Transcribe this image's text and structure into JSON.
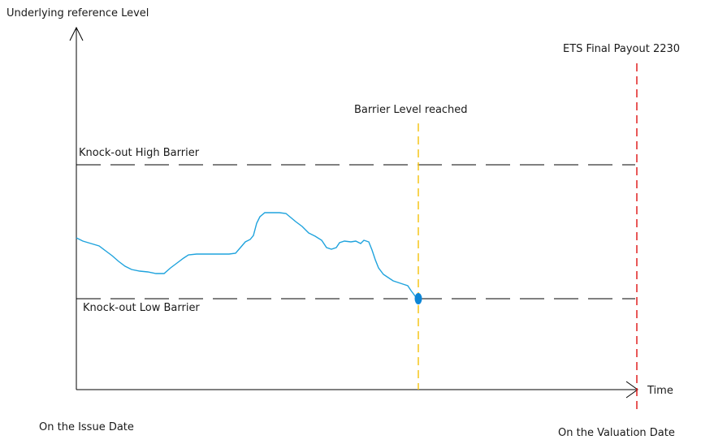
{
  "diagram": {
    "y_axis_label": "Underlying reference Level",
    "x_axis_label": "Time",
    "start_label": "On the Issue Date",
    "end_label": "On the Valuation Date",
    "high_barrier_label": "Knock-out High Barrier",
    "low_barrier_label": "Knock-out Low Barrier",
    "barrier_event_label": "Barrier Level reached",
    "final_payout_label": "ETS Final Payout 2230"
  },
  "colors": {
    "axis": "#000000",
    "barrier_lines": "#000000",
    "price_path": "#1fa3dd",
    "barrier_event_line": "#f5c518",
    "final_payout_line": "#e02020",
    "hit_marker": "#0d86d6"
  },
  "icons": {
    "y_axis_arrow": "arrow-up",
    "x_axis_arrow": "arrow-right",
    "hit_marker": "dot"
  }
}
